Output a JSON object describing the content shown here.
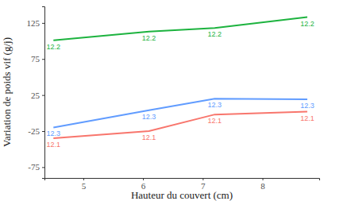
{
  "chart_data": {
    "type": "line",
    "x_label": "Hauteur du couvert (cm)",
    "y_label": "Variation de poids vif (g/j)",
    "x": [
      4.5,
      6.1,
      7.2,
      8.75
    ],
    "xlim": [
      4.35,
      8.95
    ],
    "xticks": [
      5,
      6,
      7,
      8
    ],
    "ylim": [
      -90,
      148
    ],
    "yticks": [
      -75,
      -25,
      25,
      75,
      125
    ],
    "grid": false,
    "series": [
      {
        "name": "12.2",
        "color": "#1db33f",
        "values": [
          101,
          113,
          118,
          133
        ]
      },
      {
        "name": "12.3",
        "color": "#619cff",
        "values": [
          -20,
          4,
          20,
          19
        ]
      },
      {
        "name": "12.1",
        "color": "#f8766d",
        "values": [
          -35,
          -25,
          -2,
          2
        ]
      }
    ]
  }
}
